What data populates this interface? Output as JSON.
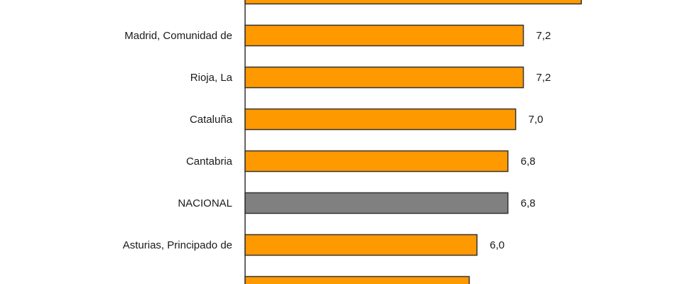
{
  "chart_data": {
    "type": "bar",
    "orientation": "horizontal",
    "categories": [
      "",
      "Madrid, Comunidad de",
      "Rioja, La",
      "Cataluña",
      "Cantabria",
      "NACIONAL",
      "Asturias, Principado de",
      ""
    ],
    "values": [
      8.7,
      7.2,
      7.2,
      7.0,
      6.8,
      6.8,
      6.0,
      5.8
    ],
    "value_labels": [
      "",
      "7,2",
      "7,2",
      "7,0",
      "6,8",
      "6,8",
      "6,0",
      ""
    ],
    "highlight": "NACIONAL",
    "colors": {
      "bar": "#ff9900",
      "highlight": "#808080",
      "outline": "#333333",
      "axis": "#333333"
    },
    "xlim": [
      0,
      9
    ],
    "grid": false,
    "legend": "none"
  }
}
